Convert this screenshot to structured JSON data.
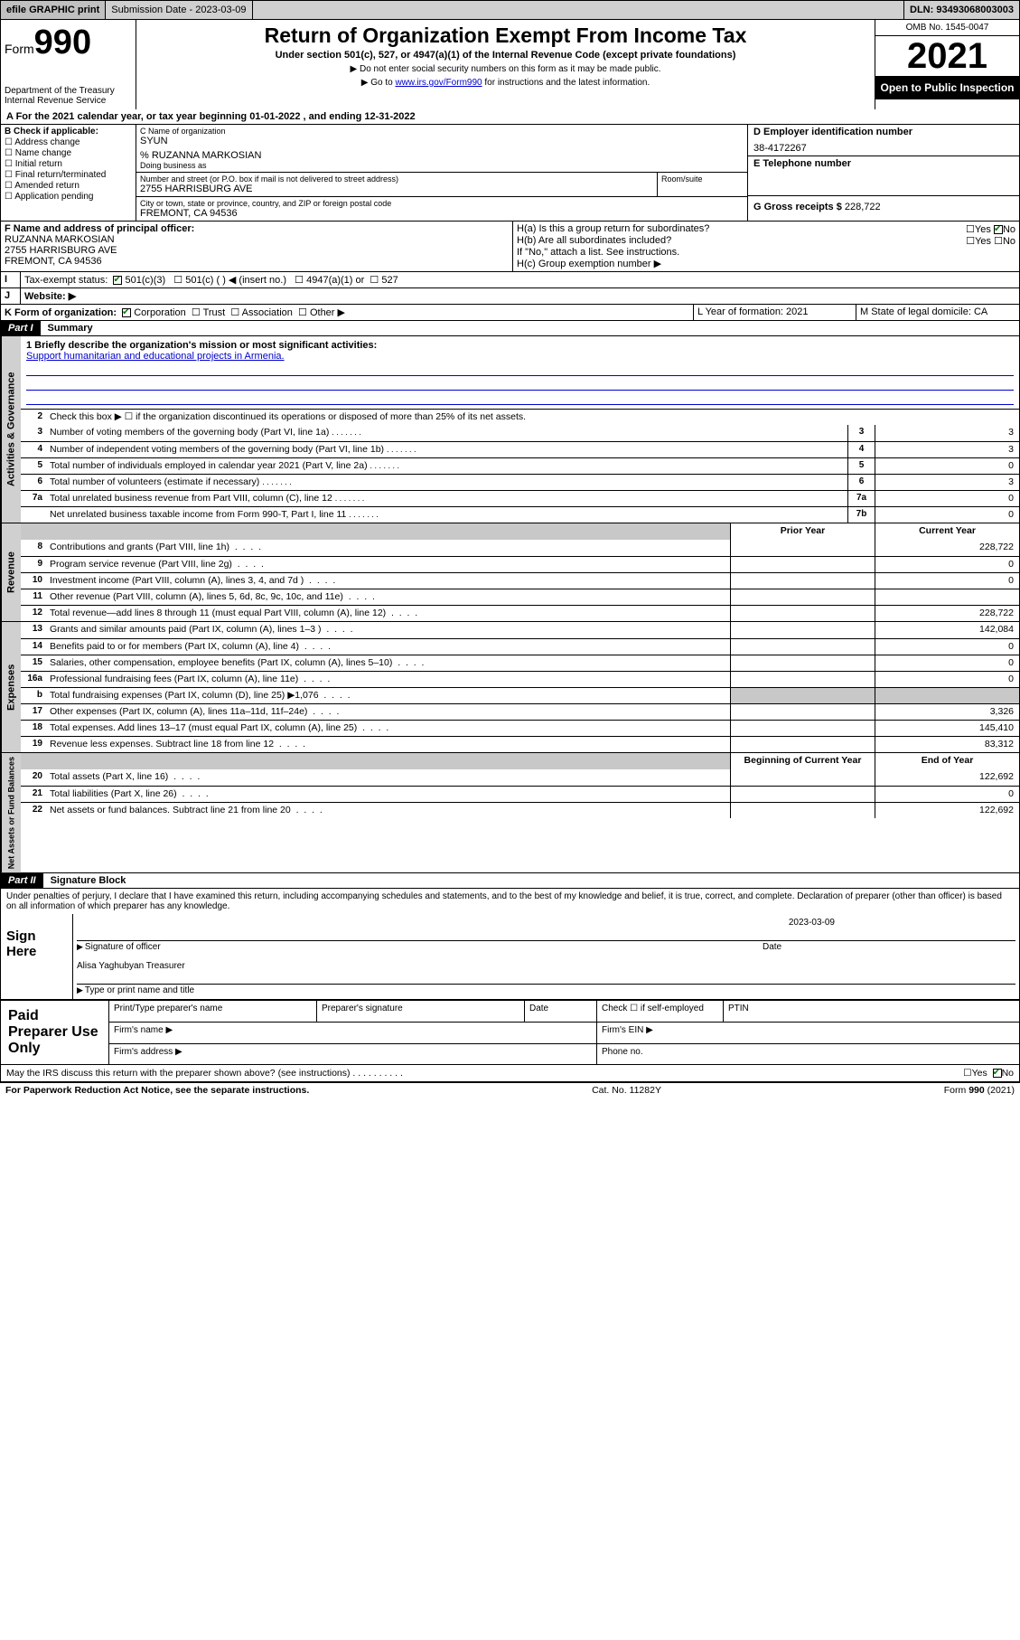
{
  "topbar": {
    "efile": "efile GRAPHIC print",
    "submission": "Submission Date - 2023-03-09",
    "dln": "DLN: 93493068003003"
  },
  "header": {
    "form_prefix": "Form",
    "form_num": "990",
    "dept": "Department of the Treasury",
    "irs": "Internal Revenue Service",
    "title": "Return of Organization Exempt From Income Tax",
    "subtitle": "Under section 501(c), 527, or 4947(a)(1) of the Internal Revenue Code (except private foundations)",
    "note1": "▶ Do not enter social security numbers on this form as it may be made public.",
    "note2_pre": "▶ Go to ",
    "note2_link": "www.irs.gov/Form990",
    "note2_post": " for instructions and the latest information.",
    "omb": "OMB No. 1545-0047",
    "year": "2021",
    "inspect": "Open to Public Inspection"
  },
  "period": {
    "text": "A For the 2021 calendar year, or tax year beginning 01-01-2022   , and ending 12-31-2022"
  },
  "boxB": {
    "label": "B Check if applicable:",
    "items": [
      "Address change",
      "Name change",
      "Initial return",
      "Final return/terminated",
      "Amended return",
      "Application pending"
    ]
  },
  "boxC": {
    "label": "C Name of organization",
    "name": "SYUN",
    "care_of": "% RUZANNA MARKOSIAN",
    "dba_label": "Doing business as",
    "street_label": "Number and street (or P.O. box if mail is not delivered to street address)",
    "room_label": "Room/suite",
    "street": "2755 HARRISBURG AVE",
    "city_label": "City or town, state or province, country, and ZIP or foreign postal code",
    "city": "FREMONT, CA  94536"
  },
  "boxD": {
    "label": "D Employer identification number",
    "value": "38-4172267"
  },
  "boxE": {
    "label": "E Telephone number",
    "value": ""
  },
  "boxG": {
    "label": "G Gross receipts $",
    "value": "228,722"
  },
  "boxF": {
    "label": "F Name and address of principal officer:",
    "name": "RUZANNA MARKOSIAN",
    "street": "2755 HARRISBURG AVE",
    "city": "FREMONT, CA  94536"
  },
  "boxH": {
    "a": "H(a)  Is this a group return for subordinates?",
    "b": "H(b)  Are all subordinates included?",
    "note": "If \"No,\" attach a list. See instructions.",
    "c": "H(c)  Group exemption number ▶",
    "yes": "Yes",
    "no": "No"
  },
  "boxI": {
    "label": "Tax-exempt status:",
    "opts": [
      "501(c)(3)",
      "501(c) (  ) ◀ (insert no.)",
      "4947(a)(1) or",
      "527"
    ]
  },
  "boxJ": {
    "label": "Website: ▶"
  },
  "boxK": {
    "label": "K Form of organization:",
    "opts": [
      "Corporation",
      "Trust",
      "Association",
      "Other ▶"
    ]
  },
  "boxL": {
    "label": "L Year of formation: 2021"
  },
  "boxM": {
    "label": "M State of legal domicile: CA"
  },
  "part1": {
    "hdr": "Part I",
    "title": "Summary",
    "line1_label": "1  Briefly describe the organization's mission or most significant activities:",
    "mission": "Support humanitarian and educational projects in Armenia.",
    "line2": "Check this box ▶ ☐  if the organization discontinued its operations or disposed of more than 25% of its net assets.",
    "tab_gov": "Activities & Governance",
    "tab_rev": "Revenue",
    "tab_exp": "Expenses",
    "tab_net": "Net Assets or Fund Balances",
    "rows_gov": [
      {
        "n": "3",
        "t": "Number of voting members of the governing body (Part VI, line 1a)",
        "b": "3",
        "v": "3"
      },
      {
        "n": "4",
        "t": "Number of independent voting members of the governing body (Part VI, line 1b)",
        "b": "4",
        "v": "3"
      },
      {
        "n": "5",
        "t": "Total number of individuals employed in calendar year 2021 (Part V, line 2a)",
        "b": "5",
        "v": "0"
      },
      {
        "n": "6",
        "t": "Total number of volunteers (estimate if necessary)",
        "b": "6",
        "v": "3"
      },
      {
        "n": "7a",
        "t": "Total unrelated business revenue from Part VIII, column (C), line 12",
        "b": "7a",
        "v": "0"
      },
      {
        "n": "",
        "t": "Net unrelated business taxable income from Form 990-T, Part I, line 11",
        "b": "7b",
        "v": "0"
      }
    ],
    "col_prior": "Prior Year",
    "col_current": "Current Year",
    "col_begin": "Beginning of Current Year",
    "col_end": "End of Year",
    "rows_rev": [
      {
        "n": "8",
        "t": "Contributions and grants (Part VIII, line 1h)",
        "p": "",
        "c": "228,722"
      },
      {
        "n": "9",
        "t": "Program service revenue (Part VIII, line 2g)",
        "p": "",
        "c": "0"
      },
      {
        "n": "10",
        "t": "Investment income (Part VIII, column (A), lines 3, 4, and 7d )",
        "p": "",
        "c": "0"
      },
      {
        "n": "11",
        "t": "Other revenue (Part VIII, column (A), lines 5, 6d, 8c, 9c, 10c, and 11e)",
        "p": "",
        "c": ""
      },
      {
        "n": "12",
        "t": "Total revenue—add lines 8 through 11 (must equal Part VIII, column (A), line 12)",
        "p": "",
        "c": "228,722"
      }
    ],
    "rows_exp": [
      {
        "n": "13",
        "t": "Grants and similar amounts paid (Part IX, column (A), lines 1–3 )",
        "p": "",
        "c": "142,084"
      },
      {
        "n": "14",
        "t": "Benefits paid to or for members (Part IX, column (A), line 4)",
        "p": "",
        "c": "0"
      },
      {
        "n": "15",
        "t": "Salaries, other compensation, employee benefits (Part IX, column (A), lines 5–10)",
        "p": "",
        "c": "0"
      },
      {
        "n": "16a",
        "t": "Professional fundraising fees (Part IX, column (A), line 11e)",
        "p": "",
        "c": "0"
      },
      {
        "n": "b",
        "t": "Total fundraising expenses (Part IX, column (D), line 25) ▶1,076",
        "p": "shaded",
        "c": "shaded"
      },
      {
        "n": "17",
        "t": "Other expenses (Part IX, column (A), lines 11a–11d, 11f–24e)",
        "p": "",
        "c": "3,326"
      },
      {
        "n": "18",
        "t": "Total expenses. Add lines 13–17 (must equal Part IX, column (A), line 25)",
        "p": "",
        "c": "145,410"
      },
      {
        "n": "19",
        "t": "Revenue less expenses. Subtract line 18 from line 12",
        "p": "",
        "c": "83,312"
      }
    ],
    "rows_net": [
      {
        "n": "20",
        "t": "Total assets (Part X, line 16)",
        "p": "",
        "c": "122,692"
      },
      {
        "n": "21",
        "t": "Total liabilities (Part X, line 26)",
        "p": "",
        "c": "0"
      },
      {
        "n": "22",
        "t": "Net assets or fund balances. Subtract line 21 from line 20",
        "p": "",
        "c": "122,692"
      }
    ]
  },
  "part2": {
    "hdr": "Part II",
    "title": "Signature Block",
    "decl": "Under penalties of perjury, I declare that I have examined this return, including accompanying schedules and statements, and to the best of my knowledge and belief, it is true, correct, and complete. Declaration of preparer (other than officer) is based on all information of which preparer has any knowledge.",
    "sign_here": "Sign Here",
    "sig_officer": "Signature of officer",
    "date": "Date",
    "sig_date": "2023-03-09",
    "name_title": "Alisa Yaghubyan Treasurer",
    "name_title_label": "Type or print name and title",
    "paid": "Paid Preparer Use Only",
    "prep_name": "Print/Type preparer's name",
    "prep_sig": "Preparer's signature",
    "check_self": "Check ☐ if self-employed",
    "ptin": "PTIN",
    "firm_name": "Firm's name  ▶",
    "firm_ein": "Firm's EIN ▶",
    "firm_addr": "Firm's address ▶",
    "phone": "Phone no."
  },
  "footer": {
    "discuss": "May the IRS discuss this return with the preparer shown above? (see instructions)",
    "yes": "Yes",
    "no": "No",
    "paperwork": "For Paperwork Reduction Act Notice, see the separate instructions.",
    "cat": "Cat. No. 11282Y",
    "form": "Form 990 (2021)"
  }
}
